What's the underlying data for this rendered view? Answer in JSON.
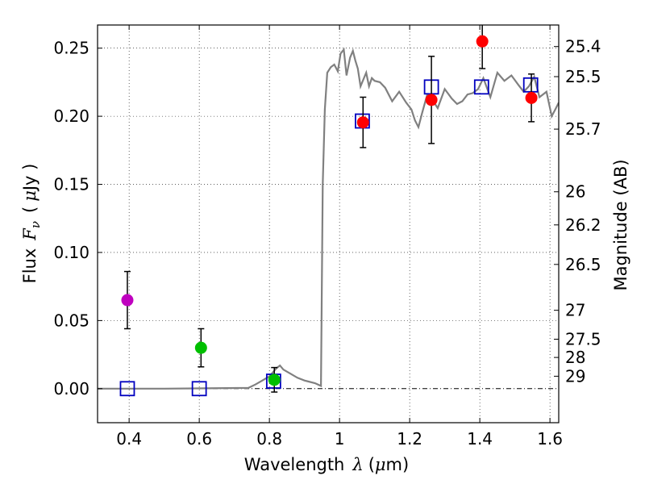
{
  "chart_data": {
    "type": "scatter",
    "title": "",
    "xlabel": "Wavelength",
    "xlabel_symbol": "λ",
    "xlabel_unit_open": "(",
    "xlabel_unit_mu": "μ",
    "xlabel_unit_rest": "m)",
    "ylabel": "Flux",
    "ylabel_symbol": "F",
    "ylabel_sub": "ν",
    "ylabel_unit_open": "(",
    "ylabel_unit_mu": "μ",
    "ylabel_unit_rest": "Jy )",
    "y2label": "Magnitude (AB)",
    "xlim": [
      0.31,
      1.625
    ],
    "ylim": [
      -0.025,
      0.267
    ],
    "grid": true,
    "x_ticks": [
      0.4,
      0.6,
      0.8,
      1.0,
      1.2,
      1.4,
      1.6
    ],
    "x_tick_labels": [
      "0.4",
      "0.6",
      "0.8",
      "1",
      "1.2",
      "1.4",
      "1.6"
    ],
    "y_ticks": [
      0.0,
      0.05,
      0.1,
      0.15,
      0.2,
      0.25
    ],
    "y_tick_labels": [
      "0.00",
      "0.05",
      "0.10",
      "0.15",
      "0.20",
      "0.25"
    ],
    "mag_ticks": [
      25.4,
      25.5,
      25.7,
      26,
      26.2,
      26.5,
      27,
      27.5,
      28,
      29
    ],
    "mag_tick_labels": [
      "25.4",
      "25.5",
      "25.7",
      "26",
      "26.2",
      "26.5",
      "27",
      "27.5",
      "28",
      "29"
    ],
    "observed": [
      {
        "x": 0.395,
        "y": 0.065,
        "err": 0.021,
        "color": "#bf00bf"
      },
      {
        "x": 0.605,
        "y": 0.03,
        "err": 0.014,
        "color": "#00bf00"
      },
      {
        "x": 0.814,
        "y": 0.0065,
        "err": 0.009,
        "color": "#00bf00"
      },
      {
        "x": 1.067,
        "y": 0.1955,
        "err": 0.0185,
        "color": "#ff0000"
      },
      {
        "x": 1.262,
        "y": 0.212,
        "err": 0.032,
        "color": "#ff0000"
      },
      {
        "x": 1.407,
        "y": 0.255,
        "err": 0.02,
        "color": "#ff0000"
      },
      {
        "x": 1.547,
        "y": 0.2135,
        "err": 0.0175,
        "color": "#ff0000"
      }
    ],
    "model": [
      {
        "x": 0.395,
        "y": 0.0
      },
      {
        "x": 0.6,
        "y": 0.0
      },
      {
        "x": 0.812,
        "y": 0.0055
      },
      {
        "x": 1.065,
        "y": 0.1965
      },
      {
        "x": 1.262,
        "y": 0.2215
      },
      {
        "x": 1.405,
        "y": 0.2215
      },
      {
        "x": 1.545,
        "y": 0.223
      }
    ],
    "sed": {
      "x": [
        0.31,
        0.5,
        0.74,
        0.76,
        0.78,
        0.8,
        0.82,
        0.83,
        0.84,
        0.86,
        0.88,
        0.9,
        0.93,
        0.947,
        0.952,
        0.958,
        0.965,
        0.975,
        0.985,
        0.995,
        1.003,
        1.012,
        1.02,
        1.03,
        1.038,
        1.045,
        1.052,
        1.06,
        1.068,
        1.076,
        1.084,
        1.092,
        1.1,
        1.115,
        1.13,
        1.15,
        1.17,
        1.19,
        1.205,
        1.215,
        1.225,
        1.235,
        1.25,
        1.265,
        1.28,
        1.3,
        1.32,
        1.335,
        1.35,
        1.365,
        1.38,
        1.395,
        1.41,
        1.43,
        1.45,
        1.47,
        1.49,
        1.51,
        1.525,
        1.54,
        1.555,
        1.57,
        1.59,
        1.605,
        1.615,
        1.625
      ],
      "y": [
        0.0,
        0.0,
        0.0005,
        0.003,
        0.006,
        0.009,
        0.015,
        0.017,
        0.014,
        0.011,
        0.008,
        0.006,
        0.004,
        0.002,
        0.15,
        0.205,
        0.232,
        0.236,
        0.238,
        0.233,
        0.246,
        0.249,
        0.23,
        0.243,
        0.248,
        0.241,
        0.235,
        0.222,
        0.227,
        0.232,
        0.222,
        0.228,
        0.226,
        0.225,
        0.221,
        0.211,
        0.218,
        0.21,
        0.205,
        0.197,
        0.192,
        0.202,
        0.216,
        0.212,
        0.206,
        0.22,
        0.213,
        0.209,
        0.211,
        0.216,
        0.217,
        0.22,
        0.228,
        0.214,
        0.232,
        0.226,
        0.23,
        0.223,
        0.218,
        0.222,
        0.229,
        0.214,
        0.218,
        0.2,
        0.205,
        0.21
      ]
    }
  }
}
